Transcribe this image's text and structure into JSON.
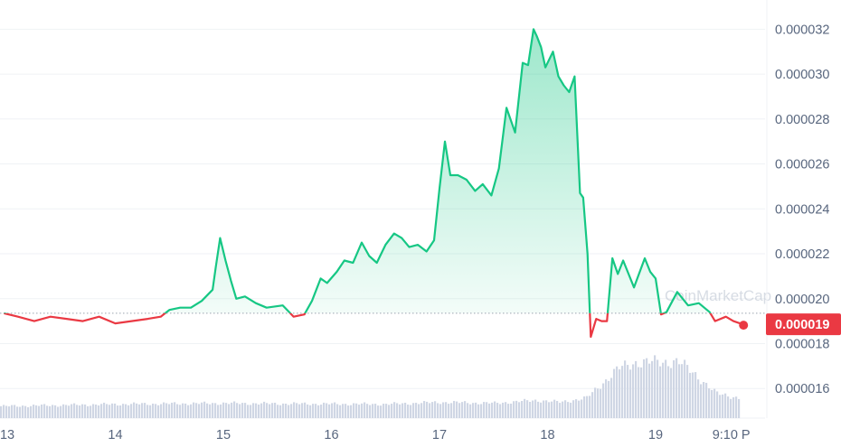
{
  "watermark": "CoinMarketCap",
  "chart_data": {
    "type": "area",
    "ylim": [
      1.42e-05,
      3.33e-05
    ],
    "baseline_price": 1.935e-05,
    "current_price_label": "0.000019",
    "colors": {
      "up_line": "#16c784",
      "down_line": "#ea3943",
      "volume": "#cfd6e4",
      "badge": "#ea3943"
    },
    "y_ticks": [
      {
        "value": 3.2e-05,
        "label": "0.000032"
      },
      {
        "value": 3e-05,
        "label": "0.000030"
      },
      {
        "value": 2.8e-05,
        "label": "0.000028"
      },
      {
        "value": 2.6e-05,
        "label": "0.000026"
      },
      {
        "value": 2.4e-05,
        "label": "0.000024"
      },
      {
        "value": 2.2e-05,
        "label": "0.000022"
      },
      {
        "value": 2e-05,
        "label": "0.000020"
      },
      {
        "value": 1.8e-05,
        "label": "0.000018"
      },
      {
        "value": 1.6e-05,
        "label": "0.000016"
      }
    ],
    "x_ticks": [
      {
        "day": 13,
        "label": "13"
      },
      {
        "day": 14,
        "label": "14"
      },
      {
        "day": 15,
        "label": "15"
      },
      {
        "day": 16,
        "label": "16"
      },
      {
        "day": 17,
        "label": "17"
      },
      {
        "day": 18,
        "label": "18"
      },
      {
        "day": 19,
        "label": "19"
      },
      {
        "day": 19.7,
        "label": "9:10 P"
      }
    ],
    "price_series": {
      "name": "Price",
      "x": [
        12.97,
        13.1,
        13.25,
        13.4,
        13.55,
        13.7,
        13.85,
        14.0,
        14.15,
        14.3,
        14.42,
        14.5,
        14.6,
        14.7,
        14.8,
        14.9,
        14.93,
        14.97,
        15.02,
        15.07,
        15.12,
        15.2,
        15.3,
        15.4,
        15.55,
        15.65,
        15.75,
        15.82,
        15.9,
        15.96,
        16.05,
        16.12,
        16.2,
        16.28,
        16.35,
        16.42,
        16.5,
        16.58,
        16.65,
        16.72,
        16.8,
        16.88,
        16.95,
        17.0,
        17.05,
        17.1,
        17.17,
        17.25,
        17.33,
        17.4,
        17.48,
        17.55,
        17.62,
        17.7,
        17.77,
        17.82,
        17.87,
        17.9,
        17.94,
        17.98,
        18.05,
        18.1,
        18.15,
        18.2,
        18.25,
        18.3,
        18.33,
        18.37,
        18.4,
        18.45,
        18.5,
        18.55,
        18.6,
        18.65,
        18.7,
        18.8,
        18.9,
        18.95,
        19.0,
        19.05,
        19.1,
        19.2,
        19.3,
        19.4,
        19.5,
        19.55,
        19.65,
        19.72,
        19.78
      ],
      "values": [
        1.935e-05,
        1.92e-05,
        1.9e-05,
        1.92e-05,
        1.91e-05,
        1.9e-05,
        1.92e-05,
        1.89e-05,
        1.9e-05,
        1.91e-05,
        1.92e-05,
        1.95e-05,
        1.96e-05,
        1.96e-05,
        1.99e-05,
        2.04e-05,
        2.14e-05,
        2.27e-05,
        2.17e-05,
        2.08e-05,
        2e-05,
        2.01e-05,
        1.98e-05,
        1.96e-05,
        1.97e-05,
        1.92e-05,
        1.93e-05,
        1.99e-05,
        2.09e-05,
        2.07e-05,
        2.12e-05,
        2.17e-05,
        2.16e-05,
        2.25e-05,
        2.19e-05,
        2.16e-05,
        2.24e-05,
        2.29e-05,
        2.27e-05,
        2.23e-05,
        2.24e-05,
        2.21e-05,
        2.26e-05,
        2.49e-05,
        2.7e-05,
        2.55e-05,
        2.55e-05,
        2.53e-05,
        2.48e-05,
        2.51e-05,
        2.46e-05,
        2.58e-05,
        2.85e-05,
        2.74e-05,
        3.05e-05,
        3.04e-05,
        3.2e-05,
        3.17e-05,
        3.12e-05,
        3.03e-05,
        3.1e-05,
        2.99e-05,
        2.95e-05,
        2.92e-05,
        2.99e-05,
        2.47e-05,
        2.45e-05,
        2.2e-05,
        1.83e-05,
        1.91e-05,
        1.9e-05,
        1.9e-05,
        2.18e-05,
        2.11e-05,
        2.17e-05,
        2.05e-05,
        2.18e-05,
        2.12e-05,
        2.09e-05,
        1.93e-05,
        1.94e-05,
        2.03e-05,
        1.97e-05,
        1.98e-05,
        1.94e-05,
        1.9e-05,
        1.92e-05,
        1.9e-05,
        1.89e-05
      ]
    },
    "volume_series": {
      "name": "Volume",
      "x": [
        12.97,
        14.0,
        15.0,
        15.5,
        16.5,
        17.0,
        17.5,
        17.9,
        18.1,
        18.35,
        18.5,
        18.65,
        18.8,
        19.2,
        19.35,
        19.55,
        19.78
      ],
      "values": [
        0.12,
        0.14,
        0.15,
        0.145,
        0.14,
        0.16,
        0.15,
        0.18,
        0.16,
        0.2,
        0.35,
        0.5,
        0.56,
        0.57,
        0.45,
        0.25,
        0.2
      ]
    }
  }
}
